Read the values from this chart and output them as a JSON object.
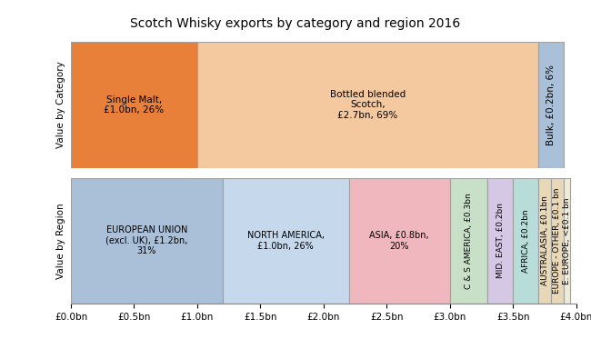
{
  "title": "Scotch Whisky exports by category and region 2016",
  "ylabel_top": "Value by Category",
  "ylabel_bottom": "Value by Region",
  "categories": [
    {
      "label": "Single Malt,\n£1.0bn, 26%",
      "value": 1.0,
      "color": "#E8803A",
      "text_rotation": 0
    },
    {
      "label": "Bottled blended\nScotch,\n£2.7bn, 69%",
      "value": 2.7,
      "color": "#F5C9A0",
      "text_rotation": 0
    },
    {
      "label": "Bulk, £0.2bn, 6%",
      "value": 0.2,
      "color": "#AABFD8",
      "text_rotation": 90
    }
  ],
  "regions": [
    {
      "label": "EUROPEAN UNION\n(excl. UK), £1.2bn,\n31%",
      "value": 1.2,
      "color": "#AABFD8",
      "text_rotation": 0
    },
    {
      "label": "NORTH AMERICA,\n£1.0bn, 26%",
      "value": 1.0,
      "color": "#C5D8EC",
      "text_rotation": 0
    },
    {
      "label": "ASIA, £0.8bn,\n20%",
      "value": 0.8,
      "color": "#F0B8BE",
      "text_rotation": 0
    },
    {
      "label": "C & S AMERICA, £0.3bn",
      "value": 0.3,
      "color": "#C8DFC8",
      "text_rotation": 90
    },
    {
      "label": "MID. EAST, £0.2bn",
      "value": 0.2,
      "color": "#D4C8E4",
      "text_rotation": 90
    },
    {
      "label": "AFRICA, £0.2bn",
      "value": 0.2,
      "color": "#B8DDD8",
      "text_rotation": 90
    },
    {
      "label": "AUSTRALASIA, £0.1bn",
      "value": 0.1,
      "color": "#E8D8B8",
      "text_rotation": 90
    },
    {
      "label": "EUROPE - OTHER, £0.1 bn",
      "value": 0.1,
      "color": "#E8D8B8",
      "text_rotation": 90
    },
    {
      "label": "E. EUROPE, <£0.1 bn",
      "value": 0.05,
      "color": "#F0EAD8",
      "text_rotation": 90
    }
  ],
  "total": 4.0,
  "xticks": [
    0.0,
    0.5,
    1.0,
    1.5,
    2.0,
    2.5,
    3.0,
    3.5,
    4.0
  ],
  "xtick_labels": [
    "£0.0bn",
    "£0.5bn",
    "£1.0bn",
    "£1.5bn",
    "£2.0bn",
    "£2.5bn",
    "£3.0bn",
    "£3.5bn",
    "£4.0bn"
  ],
  "bg_color": "#FFFFFF"
}
